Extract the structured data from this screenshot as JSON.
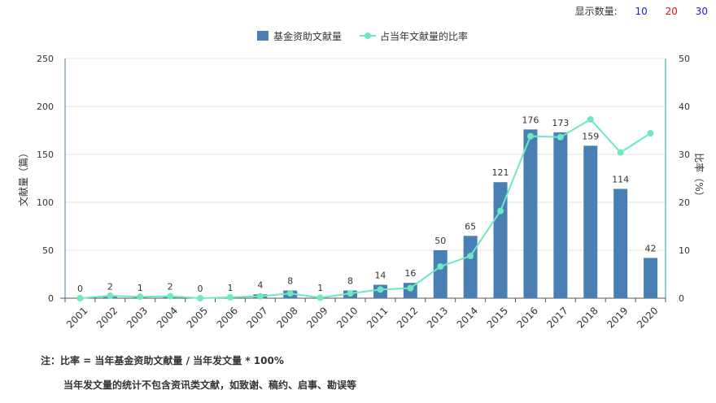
{
  "controls": {
    "label": "显示数量:",
    "options": [
      "10",
      "20",
      "30"
    ]
  },
  "chart_data": {
    "type": "bar",
    "categories": [
      "2001",
      "2002",
      "2003",
      "2004",
      "2005",
      "2006",
      "2007",
      "2008",
      "2009",
      "2010",
      "2011",
      "2012",
      "2013",
      "2014",
      "2015",
      "2016",
      "2017",
      "2018",
      "2019",
      "2020"
    ],
    "series": [
      {
        "name": "基金资助文献量",
        "type": "bar",
        "axis": "left",
        "color": "#4a7fb3",
        "values": [
          0,
          2,
          1,
          2,
          0,
          1,
          4,
          8,
          1,
          8,
          14,
          16,
          50,
          65,
          121,
          176,
          173,
          159,
          114,
          42
        ]
      },
      {
        "name": "占当年文献量的比率",
        "type": "line",
        "axis": "right",
        "color": "#6ee8c0",
        "values": [
          0,
          0.5,
          0.3,
          0.4,
          0,
          0.2,
          0.4,
          1.0,
          0.1,
          1.0,
          1.8,
          2.1,
          6.6,
          8.8,
          18.2,
          33.8,
          33.6,
          37.3,
          30.4,
          34.4
        ]
      }
    ],
    "ylabel": "文献量（篇）",
    "ylabel_right": "比率（%）",
    "ylim": [
      0,
      250
    ],
    "yticks": [
      0,
      50,
      100,
      150,
      200,
      250
    ],
    "ylim_right": [
      0,
      50
    ],
    "yticks_right": [
      0,
      10,
      20,
      30,
      40,
      50
    ],
    "grid": true,
    "legend_position": "top-center"
  },
  "notes": {
    "line1": "注：比率 = 当年基金资助文献量 / 当年发文量 * 100%",
    "line2": "当年发文量的统计不包含资讯类文献，如致谢、稿约、启事、勘误等"
  }
}
